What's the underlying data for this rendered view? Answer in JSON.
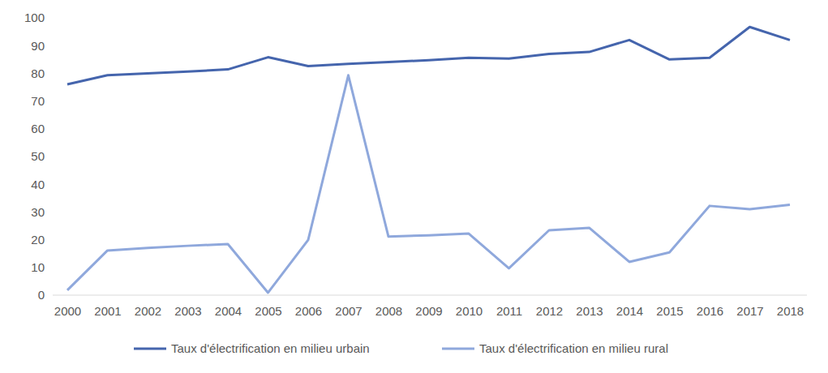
{
  "chart_data": {
    "type": "line",
    "categories": [
      "2000",
      "2001",
      "2002",
      "2003",
      "2004",
      "2005",
      "2006",
      "2007",
      "2008",
      "2009",
      "2010",
      "2011",
      "2012",
      "2013",
      "2014",
      "2015",
      "2016",
      "2017",
      "2018"
    ],
    "series": [
      {
        "name": "Taux d'électrification en milieu urbain",
        "color": "#4565ad",
        "values": [
          76,
          79.3,
          80,
          80.6,
          81.4,
          85.8,
          82.6,
          83.4,
          84.1,
          84.7,
          85.6,
          85.3,
          87,
          87.7,
          92,
          85,
          85.6,
          96.7,
          92
        ]
      },
      {
        "name": "Taux d'électrification en milieu rural",
        "color": "#8fa8dc",
        "values": [
          1.8,
          16.1,
          17,
          17.8,
          18.4,
          0.9,
          19.9,
          79.3,
          21.1,
          21.6,
          22.2,
          9.7,
          23.4,
          24.3,
          12,
          15.4,
          32.2,
          31,
          32.6
        ]
      }
    ],
    "ylim": [
      0,
      100
    ],
    "yticks": [
      0,
      10,
      20,
      30,
      40,
      50,
      60,
      70,
      80,
      90,
      100
    ],
    "grid": false,
    "legend": "bottom"
  }
}
